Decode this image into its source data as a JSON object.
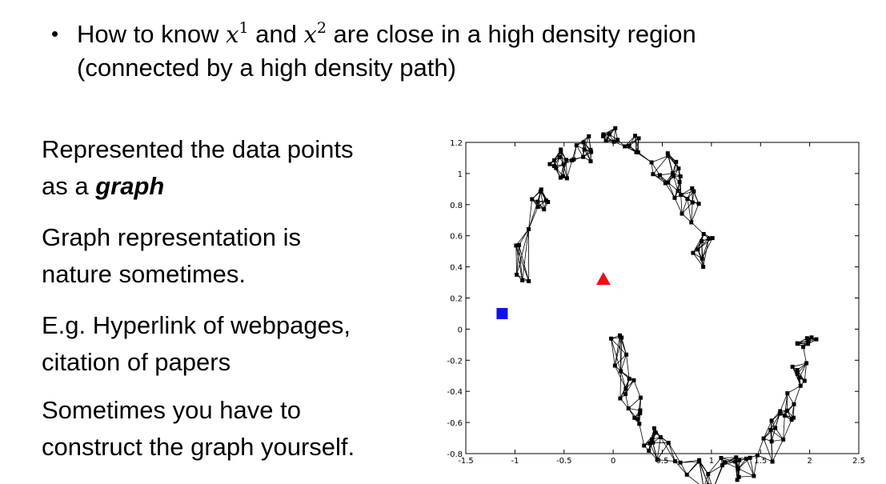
{
  "bullet": {
    "pre": "How to know ",
    "var1": "x",
    "sup1": "1",
    "mid": " and ",
    "var2": "x",
    "sup2": "2",
    "post": " are close in a high density region",
    "line2": "(connected by a high density path)"
  },
  "left": {
    "p1_a": "Represented the data points",
    "p1_b": "as a ",
    "p1_emph": "graph",
    "p2_a": "Graph representation is",
    "p2_b": "nature sometimes.",
    "p3_a": "E.g. Hyperlink of webpages,",
    "p3_b": "citation of papers",
    "p4_a": "Sometimes you have to",
    "p4_b": "construct the graph yourself."
  },
  "chart_data": {
    "type": "scatter",
    "xlim": [
      -1.5,
      2.5
    ],
    "ylim": [
      -0.8,
      1.2
    ],
    "x_ticks": [
      "-1.5",
      "-1",
      "-0.5",
      "0",
      "0.5",
      "1",
      "1.5",
      "2",
      "2.5"
    ],
    "y_ticks": [
      "-0.8",
      "-0.6",
      "-0.4",
      "-0.2",
      "0",
      "0.2",
      "0.4",
      "0.6",
      "0.8",
      "1",
      "1.2"
    ],
    "grid": false,
    "colors": {
      "points": "#000000",
      "edges": "#000000",
      "square": "#1010ee",
      "triangle": "#ee1010"
    },
    "highlighted": [
      {
        "marker": "square",
        "x": -1.13,
        "y": 0.1
      },
      {
        "marker": "triangle",
        "x": -0.1,
        "y": 0.32
      }
    ],
    "edges_note": "each point is linked to its nearest neighbours (k-NN graph)",
    "moons": [
      {
        "cx": 0.0,
        "cy": 0.25,
        "r": 0.95,
        "t_start": 0.0,
        "t_end": 3.14159,
        "count": 80
      },
      {
        "cx": 1.0,
        "cy": 0.0,
        "r": 0.95,
        "t_start": 3.14159,
        "t_end": 6.28318,
        "count": 80
      }
    ]
  }
}
